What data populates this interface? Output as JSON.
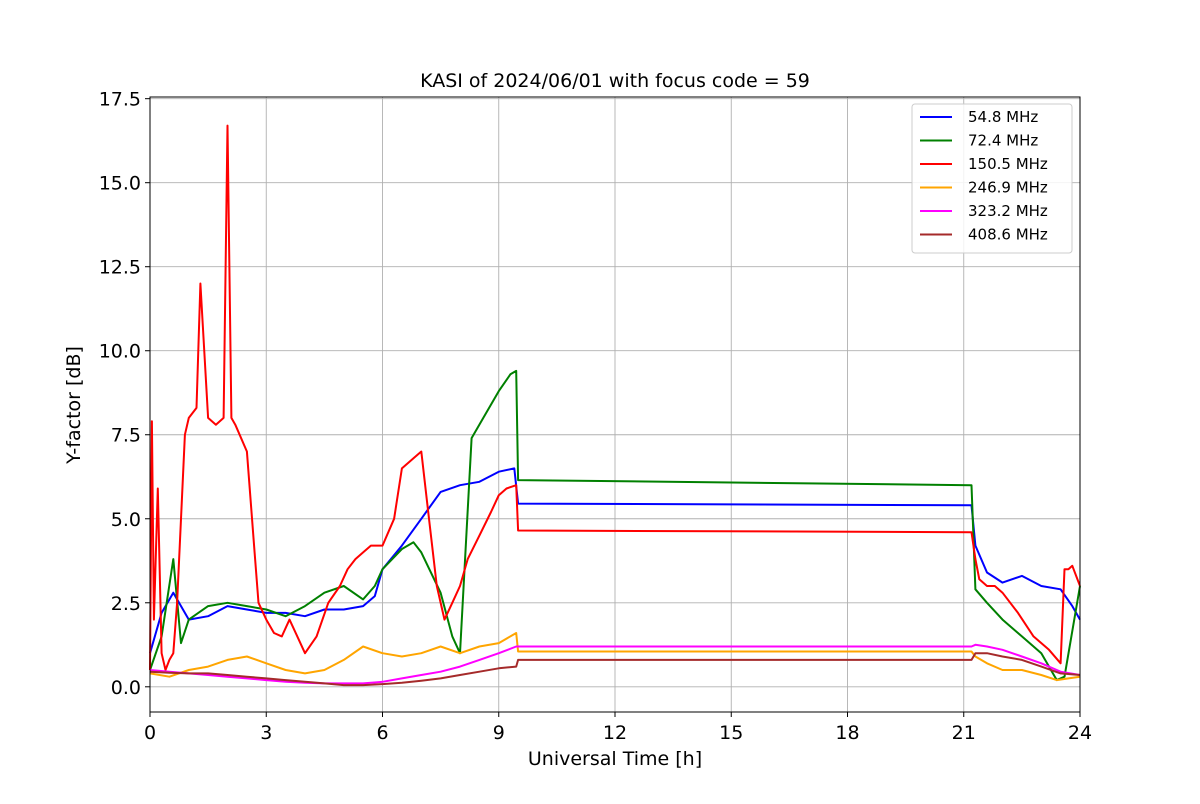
{
  "chart_data": {
    "type": "line",
    "title": "KASI of 2024/06/01 with focus code = 59",
    "xlabel": "Universal Time [h]",
    "ylabel": "Y-factor [dB]",
    "xlim": [
      0,
      24
    ],
    "ylim": [
      -0.75,
      17.55
    ],
    "xticks": [
      0,
      3,
      6,
      9,
      12,
      15,
      18,
      21,
      24
    ],
    "xtick_labels": [
      "0",
      "3",
      "6",
      "9",
      "12",
      "15",
      "18",
      "21",
      "24"
    ],
    "yticks": [
      0,
      2.5,
      5,
      7.5,
      10,
      12.5,
      15,
      17.5
    ],
    "ytick_labels": [
      "0.0",
      "2.5",
      "5.0",
      "7.5",
      "10.0",
      "12.5",
      "15.0",
      "17.5"
    ],
    "grid": true,
    "legend_position": "top-right",
    "series": [
      {
        "name": " 54.8 MHz",
        "color": "#0000ff",
        "x": [
          0,
          0.3,
          0.6,
          1.0,
          1.5,
          2.0,
          2.5,
          3.0,
          3.5,
          4.0,
          4.5,
          5.0,
          5.5,
          5.8,
          6.0,
          6.5,
          7.0,
          7.5,
          8.0,
          8.5,
          9.0,
          9.4,
          9.5,
          21.2,
          21.3,
          21.6,
          22.0,
          22.5,
          23.0,
          23.5,
          23.8,
          24.0
        ],
        "y": [
          1.0,
          2.2,
          2.8,
          2.0,
          2.1,
          2.4,
          2.3,
          2.2,
          2.2,
          2.1,
          2.3,
          2.3,
          2.4,
          2.7,
          3.5,
          4.2,
          5.0,
          5.8,
          6.0,
          6.1,
          6.4,
          6.5,
          5.45,
          5.4,
          4.2,
          3.4,
          3.1,
          3.3,
          3.0,
          2.9,
          2.4,
          2.0
        ]
      },
      {
        "name": " 72.4 MHz",
        "color": "#008000",
        "x": [
          0,
          0.3,
          0.6,
          0.8,
          1.0,
          1.5,
          2.0,
          2.5,
          3.0,
          3.5,
          4.0,
          4.5,
          5.0,
          5.5,
          5.8,
          6.0,
          6.5,
          6.8,
          7.0,
          7.5,
          7.8,
          8.0,
          8.3,
          8.6,
          9.0,
          9.3,
          9.45,
          9.5,
          21.2,
          21.3,
          21.6,
          22.0,
          22.5,
          23.0,
          23.4,
          23.6,
          24.0
        ],
        "y": [
          0.5,
          1.5,
          3.8,
          1.3,
          2.0,
          2.4,
          2.5,
          2.4,
          2.3,
          2.1,
          2.4,
          2.8,
          3.0,
          2.6,
          3.0,
          3.5,
          4.1,
          4.3,
          4.0,
          2.8,
          1.5,
          1.0,
          7.4,
          8.0,
          8.8,
          9.3,
          9.4,
          6.15,
          6.0,
          2.9,
          2.5,
          2.0,
          1.5,
          1.0,
          0.2,
          0.3,
          3.0
        ]
      },
      {
        "name": " 150.5 MHz",
        "color": "#ff0000",
        "x": [
          0,
          0.05,
          0.1,
          0.2,
          0.3,
          0.4,
          0.5,
          0.6,
          0.7,
          0.8,
          0.9,
          1.0,
          1.2,
          1.3,
          1.5,
          1.7,
          1.9,
          2.0,
          2.1,
          2.2,
          2.5,
          2.7,
          2.8,
          3.0,
          3.2,
          3.4,
          3.6,
          3.8,
          4.0,
          4.3,
          4.6,
          4.9,
          5.1,
          5.3,
          5.5,
          5.7,
          6.0,
          6.3,
          6.5,
          6.8,
          7.0,
          7.2,
          7.4,
          7.6,
          7.8,
          8.0,
          8.2,
          8.5,
          8.8,
          9.0,
          9.2,
          9.45,
          9.5,
          21.2,
          21.3,
          21.4,
          21.6,
          21.8,
          22.0,
          22.4,
          22.8,
          23.2,
          23.5,
          23.6,
          23.7,
          23.8,
          24.0
        ],
        "y": [
          0.5,
          7.9,
          2.0,
          5.9,
          1.0,
          0.5,
          0.8,
          1.0,
          2.5,
          5.0,
          7.5,
          8.0,
          8.3,
          12.0,
          8.0,
          7.8,
          8.0,
          16.7,
          8.0,
          7.8,
          7.0,
          4.0,
          2.5,
          2.0,
          1.6,
          1.5,
          2.0,
          1.5,
          1.0,
          1.5,
          2.5,
          3.0,
          3.5,
          3.8,
          4.0,
          4.2,
          4.2,
          5.0,
          6.5,
          6.8,
          7.0,
          5.0,
          3.0,
          2.0,
          2.5,
          3.0,
          3.8,
          4.5,
          5.2,
          5.7,
          5.9,
          6.0,
          4.65,
          4.6,
          3.8,
          3.2,
          3.0,
          3.0,
          2.8,
          2.2,
          1.5,
          1.1,
          0.7,
          3.5,
          3.5,
          3.6,
          3.0
        ]
      },
      {
        "name": " 246.9 MHz",
        "color": "#ffa500",
        "x": [
          0,
          0.5,
          1.0,
          1.5,
          2.0,
          2.5,
          3.0,
          3.5,
          4.0,
          4.5,
          5.0,
          5.5,
          6.0,
          6.5,
          7.0,
          7.5,
          8.0,
          8.5,
          9.0,
          9.45,
          9.5,
          21.2,
          21.3,
          21.6,
          22.0,
          22.5,
          23.0,
          23.4,
          23.7,
          24.0
        ],
        "y": [
          0.4,
          0.3,
          0.5,
          0.6,
          0.8,
          0.9,
          0.7,
          0.5,
          0.4,
          0.5,
          0.8,
          1.2,
          1.0,
          0.9,
          1.0,
          1.2,
          1.0,
          1.2,
          1.3,
          1.6,
          1.05,
          1.05,
          0.9,
          0.7,
          0.5,
          0.5,
          0.35,
          0.2,
          0.25,
          0.3
        ]
      },
      {
        "name": " 323.2 MHz",
        "color": "#ff00ff",
        "x": [
          0,
          0.5,
          1.0,
          1.5,
          2.0,
          2.5,
          3.0,
          3.5,
          4.0,
          4.5,
          5.0,
          5.5,
          6.0,
          6.5,
          7.0,
          7.5,
          8.0,
          8.5,
          9.0,
          9.45,
          9.5,
          21.2,
          21.3,
          21.6,
          22.0,
          22.5,
          23.0,
          23.5,
          24.0
        ],
        "y": [
          0.5,
          0.45,
          0.4,
          0.35,
          0.3,
          0.25,
          0.2,
          0.15,
          0.12,
          0.1,
          0.1,
          0.1,
          0.15,
          0.25,
          0.35,
          0.45,
          0.6,
          0.8,
          1.0,
          1.2,
          1.2,
          1.2,
          1.25,
          1.2,
          1.1,
          0.9,
          0.7,
          0.45,
          0.35
        ]
      },
      {
        "name": " 408.6 MHz",
        "color": "#a52a2a",
        "x": [
          0,
          0.5,
          1.0,
          1.5,
          2.0,
          2.5,
          3.0,
          3.5,
          4.0,
          4.5,
          5.0,
          5.5,
          6.0,
          6.5,
          7.0,
          7.5,
          8.0,
          8.5,
          9.0,
          9.45,
          9.5,
          21.2,
          21.3,
          21.6,
          22.0,
          22.5,
          23.0,
          23.5,
          24.0
        ],
        "y": [
          0.45,
          0.42,
          0.4,
          0.4,
          0.35,
          0.3,
          0.25,
          0.2,
          0.15,
          0.1,
          0.05,
          0.05,
          0.08,
          0.12,
          0.18,
          0.25,
          0.35,
          0.45,
          0.55,
          0.6,
          0.8,
          0.8,
          1.0,
          1.0,
          0.9,
          0.8,
          0.6,
          0.4,
          0.35
        ]
      }
    ]
  }
}
